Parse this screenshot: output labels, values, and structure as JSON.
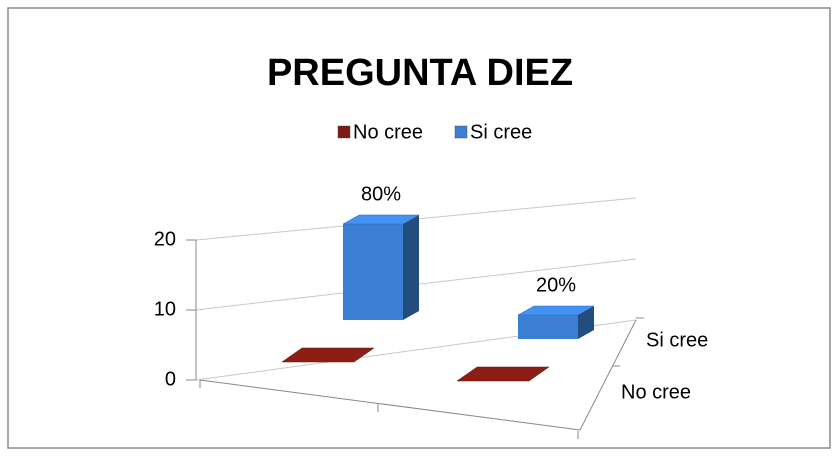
{
  "chart_data": {
    "type": "bar3d",
    "title": "PREGUNTA DIEZ",
    "categories": [
      null,
      null
    ],
    "series": [
      {
        "name": "No cree",
        "color": "#7a1a12",
        "values": [
          0,
          0
        ]
      },
      {
        "name": "Si cree",
        "color": "#3b7fd4",
        "values": [
          16,
          4
        ],
        "value_labels": [
          "80%",
          "20%"
        ]
      }
    ],
    "ylim": [
      0,
      20
    ],
    "yticks": [
      0,
      10,
      20
    ],
    "grid": true,
    "legend": "top"
  }
}
